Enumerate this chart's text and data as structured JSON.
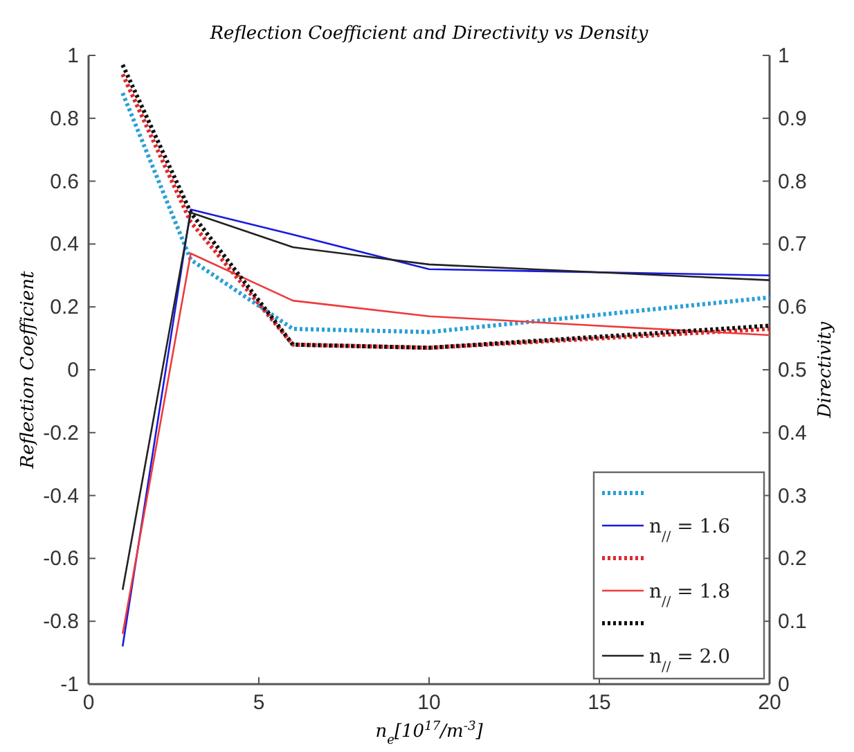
{
  "chart_data": {
    "type": "line",
    "title": "Reflection Coefficient and Directivity vs Density",
    "xlabel": "n$_{e}$[10$^{17}$/m$^{-3}$]",
    "ylabel": "Reflection Coefficient",
    "y2label": "Directivity",
    "x": [
      1,
      3,
      6,
      10,
      20
    ],
    "xlim": [
      0,
      20
    ],
    "xticks": [
      0,
      5,
      10,
      15,
      20
    ],
    "ylim": [
      -1,
      1
    ],
    "yticks": [
      -1,
      -0.8,
      -0.6,
      -0.4,
      -0.2,
      0,
      0.2,
      0.4,
      0.6,
      0.8,
      1
    ],
    "y2lim": [
      0,
      1
    ],
    "y2ticks": [
      0,
      0.1,
      0.2,
      0.3,
      0.4,
      0.5,
      0.6,
      0.7,
      0.8,
      0.9,
      1
    ],
    "series": [
      {
        "color": "#2a9fd6",
        "line_style": "dotted",
        "axis": "y2",
        "values": [
          0.94,
          0.675,
          0.565,
          0.56,
          0.615
        ]
      },
      {
        "name": "n$_{//}$ = 1.6",
        "color": "#1a1ae0",
        "line_style": "solid",
        "values": [
          -0.88,
          0.51,
          0.43,
          0.32,
          0.3
        ]
      },
      {
        "color": "#e0282d",
        "line_style": "dotted",
        "axis": "y2",
        "values": [
          0.97,
          0.735,
          0.54,
          0.535,
          0.565
        ]
      },
      {
        "name": "n$_{//}$ = 1.8",
        "color": "#f03a3a",
        "line_style": "solid",
        "values": [
          -0.84,
          0.37,
          0.22,
          0.17,
          0.11
        ]
      },
      {
        "color": "#111111",
        "line_style": "dotted",
        "axis": "y2",
        "values": [
          0.985,
          0.75,
          0.54,
          0.535,
          0.57
        ]
      },
      {
        "name": "n$_{//}$ = 2.0",
        "color": "#222222",
        "line_style": "solid",
        "values": [
          -0.7,
          0.5,
          0.39,
          0.335,
          0.285
        ]
      }
    ],
    "legend": "bottom right",
    "grid": false
  }
}
